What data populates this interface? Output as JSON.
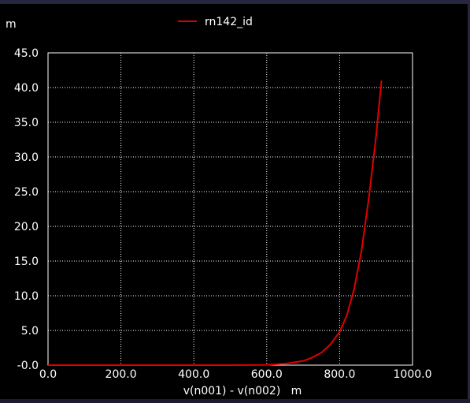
{
  "chart_data": {
    "type": "line",
    "y_unit_label": "m",
    "xlabel": "v(n001) - v(n002)   m",
    "xlim": [
      0,
      1000
    ],
    "ylim": [
      0,
      45
    ],
    "x_ticks": [
      "0.0",
      "200.0",
      "400.0",
      "600.0",
      "800.0",
      "1000.0"
    ],
    "y_ticks": [
      "-0.0",
      "5.0",
      "10.0",
      "15.0",
      "20.0",
      "25.0",
      "30.0",
      "35.0",
      "40.0",
      "45.0"
    ],
    "x_tick_values": [
      0,
      200,
      400,
      600,
      800,
      1000
    ],
    "y_tick_values": [
      0,
      5,
      10,
      15,
      20,
      25,
      30,
      35,
      40,
      45
    ],
    "grid": true,
    "legend_position": "top",
    "series": [
      {
        "name": "rn142_id",
        "color": "#e00000",
        "x": [
          0,
          100,
          200,
          300,
          400,
          500,
          550,
          600,
          650,
          700,
          725,
          750,
          775,
          800,
          820,
          840,
          860,
          880,
          900,
          915
        ],
        "y": [
          0,
          0,
          0,
          0,
          0,
          0,
          0.01,
          0.05,
          0.2,
          0.6,
          1.1,
          1.8,
          3.0,
          4.8,
          7.2,
          11.0,
          16.5,
          24.0,
          33.0,
          41.0
        ]
      }
    ]
  }
}
